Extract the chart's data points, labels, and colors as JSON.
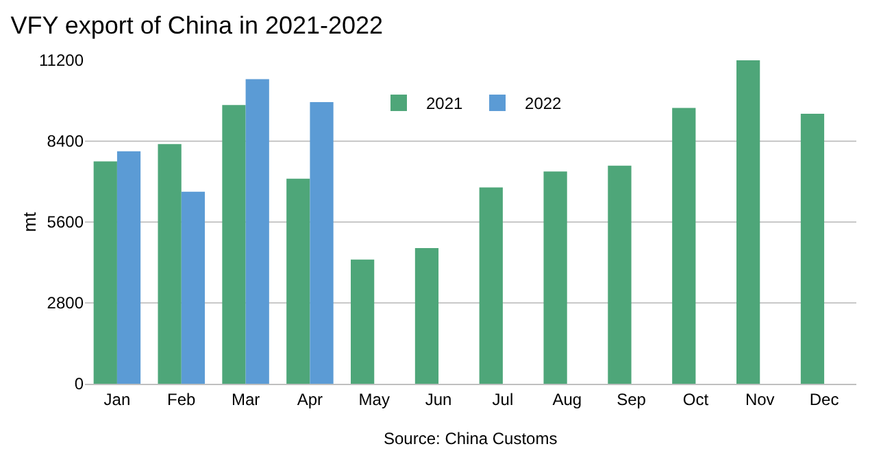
{
  "chart_data": {
    "type": "bar",
    "title": "VFY export of China in 2021-2022",
    "ylabel": "mt",
    "categories": [
      "Jan",
      "Feb",
      "Mar",
      "Apr",
      "May",
      "Jun",
      "Jul",
      "Aug",
      "Sep",
      "Oct",
      "Nov",
      "Dec"
    ],
    "series": [
      {
        "name": "2021",
        "color": "#4ea679",
        "values": [
          7700,
          8300,
          9650,
          7100,
          4300,
          4700,
          6800,
          7350,
          7550,
          9550,
          11200,
          9350
        ]
      },
      {
        "name": "2022",
        "color": "#5b9bd5",
        "values": [
          8050,
          6650,
          10550,
          9750,
          null,
          null,
          null,
          null,
          null,
          null,
          null,
          null
        ]
      }
    ],
    "ylim": [
      0,
      11200
    ],
    "yticks": [
      0,
      2800,
      5600,
      8400,
      11200
    ],
    "grid": "y",
    "legend": "top",
    "annotations": [
      "Source: China Customs"
    ]
  }
}
